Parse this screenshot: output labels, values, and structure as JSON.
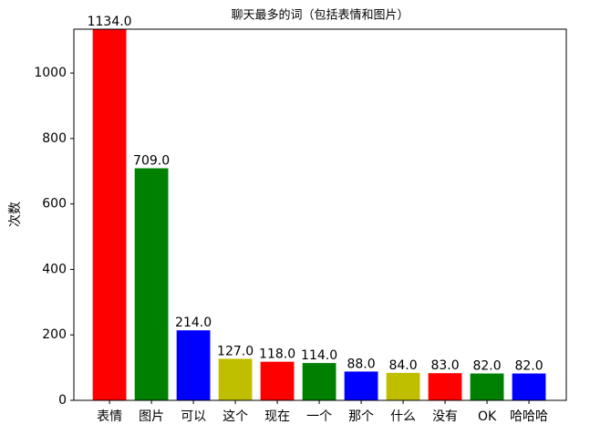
{
  "chart_data": {
    "type": "bar",
    "title": "聊天最多的词（包括表情和图片）",
    "y_label": "次数",
    "categories": [
      "表情",
      "图片",
      "可以",
      "这个",
      "现在",
      "一个",
      "那个",
      "什么",
      "没有",
      "OK",
      "哈哈哈"
    ],
    "values": [
      1134,
      709,
      214,
      127,
      118,
      114,
      88,
      84,
      83,
      82,
      82
    ],
    "value_labels": [
      "1134.0",
      "709.0",
      "214.0",
      "127.0",
      "118.0",
      "114.0",
      "88.0",
      "84.0",
      "83.0",
      "82.0",
      "82.0"
    ],
    "colors": [
      "#ff0000",
      "#008000",
      "#0000ff",
      "#bfbf00",
      "#ff0000",
      "#008000",
      "#0000ff",
      "#bfbf00",
      "#ff0000",
      "#008000",
      "#0000ff"
    ],
    "ylim": [
      0,
      1134
    ],
    "yticks": [
      0,
      200,
      400,
      600,
      800,
      1000
    ],
    "grid": false
  }
}
